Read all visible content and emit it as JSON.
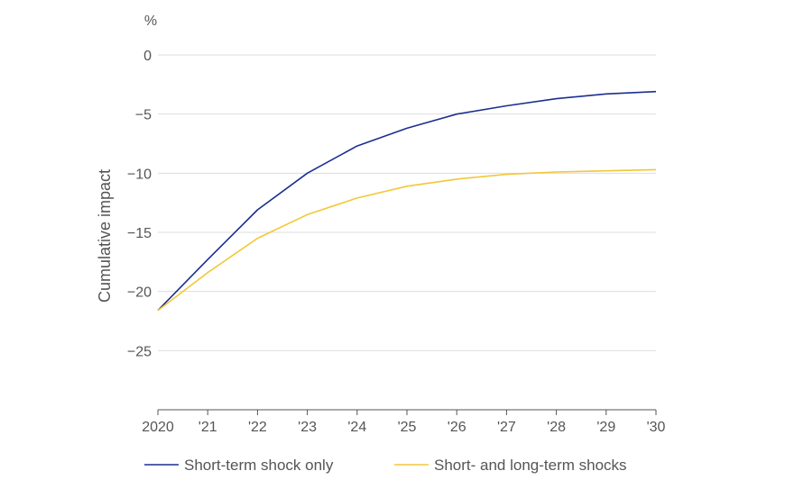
{
  "chart_data": {
    "type": "line",
    "unit": "%",
    "ylabel": "Cumulative impact",
    "xlabel": "",
    "x": [
      "2020",
      "'21",
      "'22",
      "'23",
      "'24",
      "'25",
      "'26",
      "'27",
      "'28",
      "'29",
      "'30"
    ],
    "ylim": [
      -30,
      0
    ],
    "yticks": [
      0,
      -5,
      -10,
      -15,
      -20,
      -25
    ],
    "ytick_labels": [
      "0",
      "−5",
      "−10",
      "−15",
      "−20",
      "−25"
    ],
    "grid": "horizontal",
    "legend_position": "bottom",
    "series": [
      {
        "name": "Short-term shock only",
        "color": "#1a2f8f",
        "values": [
          -21.6,
          -17.3,
          -13.1,
          -10.0,
          -7.7,
          -6.2,
          -5.0,
          -4.3,
          -3.7,
          -3.3,
          -3.1
        ]
      },
      {
        "name": "Short- and long-term shocks",
        "color": "#f2c738",
        "values": [
          -21.6,
          -18.4,
          -15.5,
          -13.5,
          -12.1,
          -11.1,
          -10.5,
          -10.1,
          -9.9,
          -9.8,
          -9.7
        ]
      }
    ]
  }
}
